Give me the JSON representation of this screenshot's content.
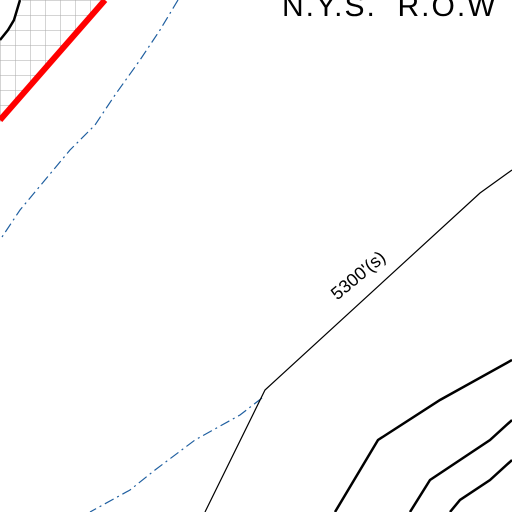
{
  "map": {
    "labels": {
      "row": "N.Y.S.  R.O.W",
      "contour": "5300'(s)"
    }
  }
}
